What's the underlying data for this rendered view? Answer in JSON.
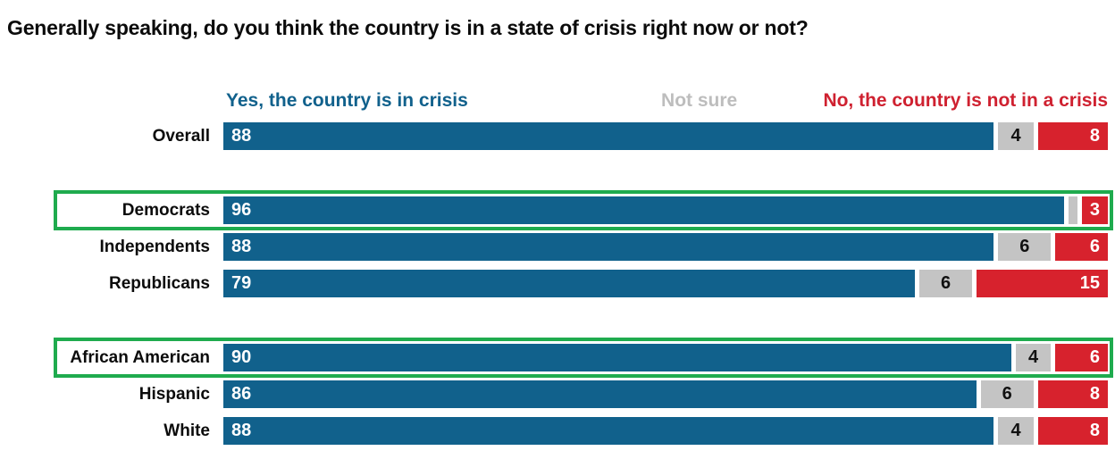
{
  "title": "Generally speaking, do you think the country is in a state of crisis right now or not?",
  "colors": {
    "yes_bar": "#11618c",
    "not_sure_bar": "#c4c4c4",
    "no_bar": "#d7222d",
    "legend_yes_text": "#11618c",
    "legend_not_sure_text": "#bdbdbd",
    "legend_no_text": "#cf2130",
    "highlight_border": "#1fab4e"
  },
  "legend": {
    "yes": "Yes, the country is in crisis",
    "not_sure": "Not sure",
    "no": "No, the country is not in a crisis"
  },
  "chart_data": {
    "type": "bar",
    "orientation": "horizontal-stacked",
    "title": "Generally speaking, do you think the country is in a state of crisis right now or not?",
    "xlim": [
      0,
      100
    ],
    "grid": false,
    "legend_position": "top",
    "series_names": [
      "Yes, the country is in crisis",
      "Not sure",
      "No, the country is not in a crisis"
    ],
    "groups": [
      {
        "rows": [
          {
            "label": "Overall",
            "yes": 88,
            "not_sure": 4,
            "no": 8,
            "value_labels": {
              "yes": "88",
              "not_sure": "4",
              "no": "8"
            },
            "highlighted": false
          }
        ]
      },
      {
        "rows": [
          {
            "label": "Democrats",
            "yes": 96,
            "not_sure": 1,
            "no": 3,
            "value_labels": {
              "yes": "96",
              "not_sure": "",
              "no": "3"
            },
            "highlighted": true
          },
          {
            "label": "Independents",
            "yes": 88,
            "not_sure": 6,
            "no": 6,
            "value_labels": {
              "yes": "88",
              "not_sure": "6",
              "no": "6"
            },
            "highlighted": false
          },
          {
            "label": "Republicans",
            "yes": 79,
            "not_sure": 6,
            "no": 15,
            "value_labels": {
              "yes": "79",
              "not_sure": "6",
              "no": "15"
            },
            "highlighted": false
          }
        ]
      },
      {
        "rows": [
          {
            "label": "African American",
            "yes": 90,
            "not_sure": 4,
            "no": 6,
            "value_labels": {
              "yes": "90",
              "not_sure": "4",
              "no": "6"
            },
            "highlighted": true
          },
          {
            "label": "Hispanic",
            "yes": 86,
            "not_sure": 6,
            "no": 8,
            "value_labels": {
              "yes": "86",
              "not_sure": "6",
              "no": "8"
            },
            "highlighted": false
          },
          {
            "label": "White",
            "yes": 88,
            "not_sure": 4,
            "no": 8,
            "value_labels": {
              "yes": "88",
              "not_sure": "4",
              "no": "8"
            },
            "highlighted": false
          }
        ]
      }
    ]
  }
}
